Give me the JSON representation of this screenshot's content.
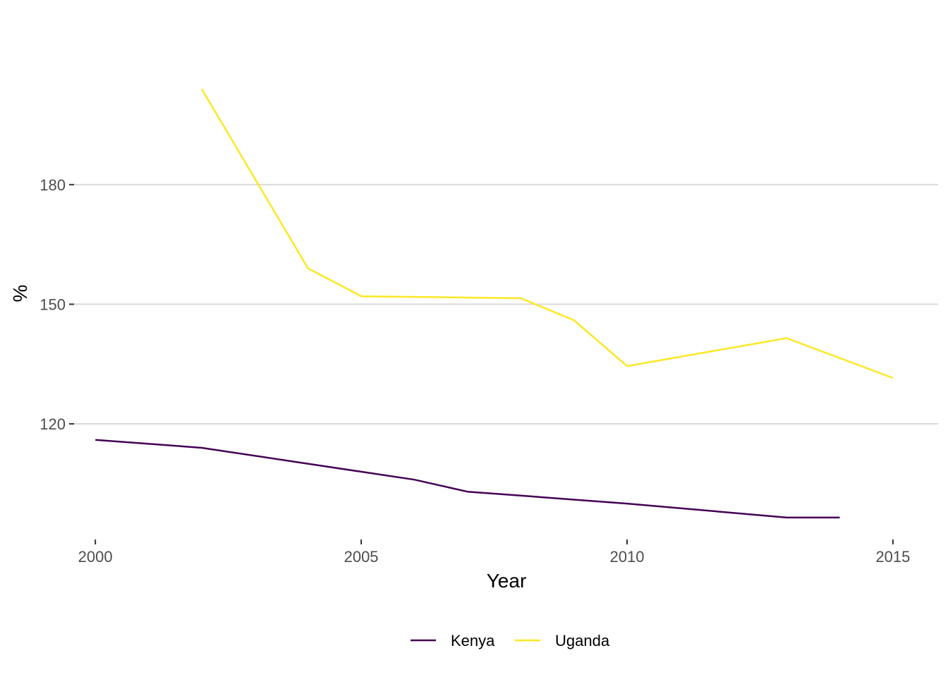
{
  "chart_data": {
    "type": "line",
    "title": "",
    "xlabel": "Year",
    "ylabel": "%",
    "xlim": [
      1999.6,
      2015.85
    ],
    "ylim": [
      91,
      221
    ],
    "x_ticks": [
      "2000",
      "2005",
      "2010",
      "2015"
    ],
    "y_ticks": [
      "120",
      "150",
      "180"
    ],
    "grid": "horizontal major",
    "legend_position": "bottom",
    "series": [
      {
        "name": "Kenya",
        "color": "#440154",
        "points": [
          {
            "x": 2000,
            "y": 116
          },
          {
            "x": 2002,
            "y": 114
          },
          {
            "x": 2004,
            "y": 110
          },
          {
            "x": 2005,
            "y": 108
          },
          {
            "x": 2006,
            "y": 106
          },
          {
            "x": 2007,
            "y": 103
          },
          {
            "x": 2008,
            "y": 102
          },
          {
            "x": 2009,
            "y": 101
          },
          {
            "x": 2010,
            "y": 100
          },
          {
            "x": 2013,
            "y": 96.5
          },
          {
            "x": 2014,
            "y": 96.5
          }
        ]
      },
      {
        "name": "Uganda",
        "color": "#FDE725",
        "points": [
          {
            "x": 2002,
            "y": 204
          },
          {
            "x": 2004,
            "y": 159
          },
          {
            "x": 2005,
            "y": 152
          },
          {
            "x": 2008,
            "y": 151.5
          },
          {
            "x": 2009,
            "y": 146
          },
          {
            "x": 2010,
            "y": 134.5
          },
          {
            "x": 2013,
            "y": 141.5
          },
          {
            "x": 2015,
            "y": 131.5
          }
        ]
      }
    ]
  }
}
